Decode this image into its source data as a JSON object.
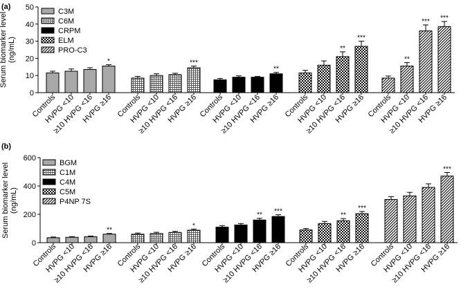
{
  "chart_data": [
    {
      "panel": "(a)",
      "type": "bar",
      "ylabel": "Serum biomarker level (ng/mL)",
      "ylabel_lines": [
        "Serum biomarker level",
        "(ng/mL)"
      ],
      "ylim": [
        0,
        50
      ],
      "yticks": [
        0,
        10,
        20,
        30,
        40,
        50
      ],
      "categories": [
        "Controls",
        "HVPG <10",
        "≥10 HVPG <16",
        "HVPG ≥16"
      ],
      "legend": [
        "C3M",
        "C6M",
        "CRPM",
        "ELM",
        "PRO-C3"
      ],
      "series": [
        {
          "name": "C3M",
          "fill": "solid-gray",
          "values": [
            11.5,
            12.5,
            13.5,
            15.5
          ],
          "errors": [
            1.0,
            1.3,
            1.0,
            0.8
          ],
          "sig": [
            "",
            "",
            "",
            "*"
          ]
        },
        {
          "name": "C6M",
          "fill": "fine-grid",
          "values": [
            8.5,
            10.0,
            10.5,
            14.5
          ],
          "errors": [
            1.0,
            1.0,
            0.8,
            1.0
          ],
          "sig": [
            "",
            "",
            "",
            "***"
          ]
        },
        {
          "name": "CRPM",
          "fill": "black",
          "values": [
            7.5,
            9.0,
            9.0,
            11.0
          ],
          "errors": [
            0.8,
            0.8,
            0.5,
            0.8
          ],
          "sig": [
            "",
            "",
            "",
            "**"
          ]
        },
        {
          "name": "ELM",
          "fill": "checker",
          "values": [
            11.5,
            16.0,
            21.0,
            27.0
          ],
          "errors": [
            1.5,
            2.5,
            2.8,
            3.0
          ],
          "sig": [
            "",
            "",
            "**",
            "***"
          ]
        },
        {
          "name": "PRO-C3",
          "fill": "diagonal",
          "values": [
            8.5,
            15.5,
            36.0,
            38.5
          ],
          "errors": [
            1.2,
            2.0,
            3.5,
            3.0
          ],
          "sig": [
            "",
            "**",
            "***",
            "***"
          ]
        }
      ]
    },
    {
      "panel": "(b)",
      "type": "bar",
      "ylabel": "Serum biomarker level (ng/mL)",
      "ylabel_lines": [
        "Serum biomarker level",
        "(ng/mL)"
      ],
      "ylim": [
        0,
        600
      ],
      "yticks": [
        0,
        200,
        400,
        600
      ],
      "categories": [
        "Controls",
        "HVPG <10",
        "≥10 HVPG <16",
        "HVPG ≥16"
      ],
      "legend": [
        "BGM",
        "C1M",
        "C4M",
        "C5M",
        "P4NP 7S"
      ],
      "series": [
        {
          "name": "BGM",
          "fill": "solid-gray",
          "values": [
            35,
            38,
            42,
            60
          ],
          "errors": [
            5,
            5,
            5,
            5
          ],
          "sig": [
            "",
            "",
            "",
            "**"
          ]
        },
        {
          "name": "C1M",
          "fill": "fine-grid",
          "values": [
            60,
            65,
            72,
            88
          ],
          "errors": [
            8,
            8,
            8,
            8
          ],
          "sig": [
            "",
            "",
            "",
            "*"
          ]
        },
        {
          "name": "C4M",
          "fill": "black",
          "values": [
            110,
            125,
            160,
            185
          ],
          "errors": [
            10,
            10,
            12,
            12
          ],
          "sig": [
            "",
            "",
            "**",
            "***"
          ]
        },
        {
          "name": "C5M",
          "fill": "checker",
          "values": [
            90,
            135,
            155,
            205
          ],
          "errors": [
            10,
            15,
            15,
            15
          ],
          "sig": [
            "",
            "",
            "**",
            "***"
          ]
        },
        {
          "name": "P4NP 7S",
          "fill": "diagonal",
          "values": [
            305,
            330,
            390,
            470
          ],
          "errors": [
            20,
            25,
            25,
            25
          ],
          "sig": [
            "",
            "",
            "",
            "***"
          ]
        }
      ]
    }
  ]
}
